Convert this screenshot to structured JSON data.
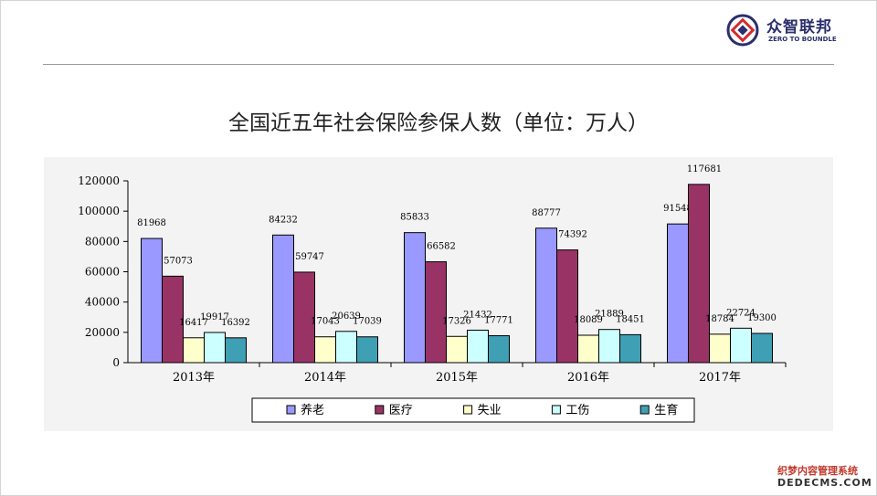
{
  "logo": {
    "name": "众智联邦",
    "subtitle": "ZERO TO BOUNDLE"
  },
  "watermark": {
    "line1": "织梦内容管理系统",
    "line2": "DEDECMS.COM"
  },
  "colors": {
    "pension": "#9999ff",
    "medical": "#993366",
    "unemployment": "#ffffcc",
    "injury": "#ccffff",
    "maternity": "#3f9fb5"
  },
  "chart_data": {
    "type": "bar",
    "title": "全国近五年社会保险参保人数（单位：万人）",
    "categories": [
      "2013年",
      "2014年",
      "2015年",
      "2016年",
      "2017年"
    ],
    "series": [
      {
        "name": "养老",
        "color": "#9999ff",
        "values": [
          81968,
          84232,
          85833,
          88777,
          91548
        ]
      },
      {
        "name": "医疗",
        "color": "#993366",
        "values": [
          57073,
          59747,
          66582,
          74392,
          117681
        ]
      },
      {
        "name": "失业",
        "color": "#ffffcc",
        "values": [
          16417,
          17043,
          17326,
          18089,
          18784
        ]
      },
      {
        "name": "工伤",
        "color": "#ccffff",
        "values": [
          19917,
          20639,
          21432,
          21889,
          22724
        ]
      },
      {
        "name": "生育",
        "color": "#3f9fb5",
        "values": [
          16392,
          17039,
          17771,
          18451,
          19300
        ]
      }
    ],
    "yticks": [
      "0",
      "20000",
      "40000",
      "60000",
      "80000",
      "100000",
      "120000"
    ],
    "ylim": [
      0,
      120000
    ],
    "legend": "bottom",
    "grid": false
  }
}
